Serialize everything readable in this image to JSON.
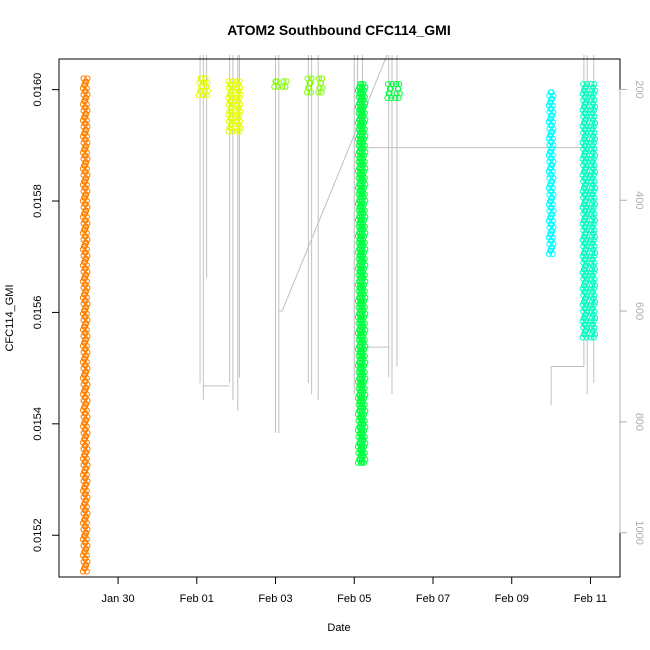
{
  "chart_data": {
    "type": "scatter",
    "title": "ATOM2 Southbound CFC114_GMI",
    "xlabel": "Date",
    "ylabel": "CFC114_GMI",
    "x_axis_type": "date",
    "xlim": [
      "2017-01-28T12:00",
      "2017-02-11T18:00"
    ],
    "ylim": [
      0.015125,
      0.016055
    ],
    "y2lim": [
      1080,
      145
    ],
    "x_tick_labels": [
      "Jan 30",
      "Feb 01",
      "Feb 03",
      "Feb 05",
      "Feb 07",
      "Feb 09",
      "Feb 11"
    ],
    "x_ticks": [
      "2017-01-30",
      "2017-02-01",
      "2017-02-03",
      "2017-02-05",
      "2017-02-07",
      "2017-02-09",
      "2017-02-11"
    ],
    "y_tick_labels": [
      "0.0152",
      "0.0154",
      "0.0156",
      "0.0158",
      "0.0160"
    ],
    "y_ticks": [
      0.0152,
      0.0154,
      0.0156,
      0.0158,
      0.016
    ],
    "y2_tick_labels": [
      "200",
      "400",
      "600",
      "800",
      "1000"
    ],
    "y2_ticks": [
      200,
      400,
      600,
      800,
      1000
    ],
    "grid": false,
    "series": [
      {
        "color": "#ff8000",
        "x": [
          "2017-01-29T04:00"
        ],
        "y_range": [
          0.015135,
          0.01602
        ]
      },
      {
        "color": "#e6ff00",
        "x": [
          "2017-02-01T02:00",
          "2017-02-01T06:00"
        ],
        "y_range": [
          0.01599,
          0.01602
        ]
      },
      {
        "color": "#e6ff00",
        "x": [
          "2017-02-01T20:00",
          "2017-02-02T02:00"
        ],
        "y_range": [
          0.015925,
          0.016015
        ]
      },
      {
        "color": "#80ff00",
        "x": [
          "2017-02-03T00:00",
          "2017-02-03T06:00"
        ],
        "y_range": [
          0.016005,
          0.016015
        ]
      },
      {
        "color": "#80ff00",
        "x": [
          "2017-02-03T20:00",
          "2017-02-04T04:00"
        ],
        "y_range": [
          0.015995,
          0.01602
        ]
      },
      {
        "color": "#00ff40",
        "x": [
          "2017-02-05T03:00",
          "2017-02-05T06:00"
        ],
        "y_range": [
          0.01533,
          0.01601
        ]
      },
      {
        "color": "#00ff40",
        "x": [
          "2017-02-05T21:00",
          "2017-02-06T03:00"
        ],
        "y_range": [
          0.015985,
          0.01601
        ]
      },
      {
        "color": "#00ffff",
        "x": [
          "2017-02-10T00:00"
        ],
        "y_range": [
          0.015705,
          0.015995
        ]
      },
      {
        "color": "#00ffc0",
        "x": [
          "2017-02-10T20:00",
          "2017-02-11T02:00"
        ],
        "y_range": [
          0.015555,
          0.01601
        ]
      }
    ]
  }
}
